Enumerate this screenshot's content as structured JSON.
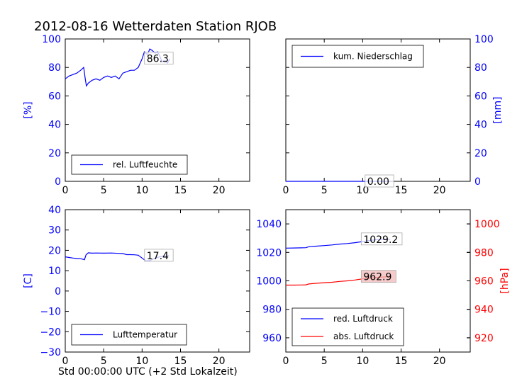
{
  "title": "2012-08-16 Wetterdaten Station RJOB",
  "xlabel": "Std 00:00:00 UTC (+2 Std Lokalzeit)",
  "colors": {
    "primary": "#0000ff",
    "secondary": "#ff0000",
    "axis": "#000000"
  },
  "chart_data": [
    {
      "type": "line",
      "ylabel": "[%]",
      "xlim": [
        0,
        24
      ],
      "ylim": [
        0,
        100
      ],
      "xticks": [
        "0",
        "5",
        "10",
        "15",
        "20"
      ],
      "yticks": [
        "0",
        "20",
        "40",
        "60",
        "80",
        "100"
      ],
      "legend": "bottom-left",
      "annotation": {
        "text": "86.3",
        "x": 10.5,
        "y": 86.3
      },
      "series": [
        {
          "name": "rel. Luftfeuchte",
          "color": "#0000ff",
          "x": [
            0,
            0.5,
            1.0,
            1.5,
            2.0,
            2.4,
            2.6,
            2.75,
            3.0,
            3.5,
            4.0,
            4.5,
            5.0,
            5.5,
            6.0,
            6.5,
            7.0,
            7.5,
            8.0,
            8.5,
            9.0,
            9.5,
            10.0,
            10.3,
            10.7,
            11.0,
            11.3,
            11.7,
            12.0,
            12.3,
            12.6,
            13.0,
            13.3,
            13.6
          ],
          "values": [
            72,
            74,
            75,
            76,
            78,
            80,
            72,
            67,
            69,
            71,
            72,
            71,
            73,
            74,
            73,
            74,
            72,
            76,
            77,
            78,
            78,
            80,
            86,
            91,
            89,
            93,
            92,
            90,
            91,
            88,
            84,
            85,
            83,
            86
          ]
        }
      ]
    },
    {
      "type": "line",
      "ylabel": "[mm]",
      "xlim": [
        0,
        24
      ],
      "ylim": [
        0,
        100
      ],
      "xticks": [
        "0",
        "5",
        "10",
        "15",
        "20"
      ],
      "yticks": [
        "0",
        "20",
        "40",
        "60",
        "80",
        "100"
      ],
      "yaxis_side": "right",
      "legend": "top-left",
      "annotation": {
        "text": "0.00",
        "x": 10.5,
        "y": 0
      },
      "series": [
        {
          "name": "kum. Niederschlag",
          "color": "#0000ff",
          "x": [
            0,
            13.6
          ],
          "values": [
            0,
            0
          ]
        }
      ]
    },
    {
      "type": "line",
      "ylabel": "[C]",
      "xlim": [
        0,
        24
      ],
      "ylim": [
        -30,
        40
      ],
      "xticks": [
        "0",
        "5",
        "10",
        "15",
        "20"
      ],
      "yticks": [
        "−30",
        "−20",
        "−10",
        "0",
        "10",
        "20",
        "30",
        "40"
      ],
      "legend": "bottom-left",
      "annotation": {
        "text": "17.4",
        "x": 10.5,
        "y": 17.4
      },
      "series": [
        {
          "name": "Lufttemperatur",
          "color": "#0000ff",
          "x": [
            0,
            0.5,
            1.0,
            1.5,
            2.0,
            2.5,
            2.7,
            3.0,
            3.5,
            4.0,
            5.0,
            6.0,
            7.0,
            7.5,
            8.0,
            8.5,
            9.0,
            9.5,
            10.0,
            10.5,
            11.0,
            11.5,
            12.0,
            12.5,
            13.0,
            13.5
          ],
          "values": [
            16.8,
            16.5,
            16.2,
            16.0,
            15.9,
            15.4,
            17.8,
            18.8,
            18.6,
            18.7,
            18.6,
            18.7,
            18.5,
            18.4,
            17.9,
            17.9,
            17.8,
            17.6,
            16.2,
            14.8,
            15.0,
            15.8,
            16.5,
            17.0,
            17.2,
            17.4
          ]
        }
      ]
    },
    {
      "type": "line",
      "xlim": [
        0,
        24
      ],
      "ylim": [
        950,
        1050
      ],
      "xticks": [
        "0",
        "5",
        "10",
        "15",
        "20"
      ],
      "yticks": [
        "960",
        "980",
        "1000",
        "1020",
        "1040"
      ],
      "y2label": "[hPa]",
      "y2lim": [
        910,
        1010
      ],
      "y2ticks": [
        "920",
        "940",
        "960",
        "980",
        "1000"
      ],
      "legend": "bottom-left",
      "annotations": [
        {
          "text": "1029.2",
          "x": 10,
          "y": 1029.2,
          "axis": "left"
        },
        {
          "text": "962.9",
          "x": 10,
          "y": 962.9,
          "axis": "right"
        }
      ],
      "series": [
        {
          "name": "red. Luftdruck",
          "color": "#0000ff",
          "axis": "left",
          "x": [
            0,
            1,
            2,
            2.6,
            3,
            4,
            5,
            6,
            7,
            8,
            9,
            10,
            11,
            12,
            13,
            13.6
          ],
          "values": [
            1023.0,
            1023.1,
            1023.2,
            1023.3,
            1024.0,
            1024.4,
            1024.8,
            1025.2,
            1025.8,
            1026.2,
            1026.8,
            1027.6,
            1028.4,
            1029.0,
            1029.2,
            1029.2
          ]
        },
        {
          "name": "abs. Luftdruck",
          "color": "#ff0000",
          "axis": "right",
          "x": [
            0,
            1,
            2,
            2.6,
            3,
            4,
            5,
            6,
            7,
            8,
            9,
            10,
            11,
            12,
            13,
            13.6
          ],
          "values": [
            957.0,
            957.0,
            957.1,
            957.2,
            957.8,
            958.3,
            958.7,
            959.0,
            959.6,
            960.0,
            960.6,
            961.4,
            962.0,
            962.5,
            962.8,
            962.9
          ]
        }
      ]
    }
  ]
}
